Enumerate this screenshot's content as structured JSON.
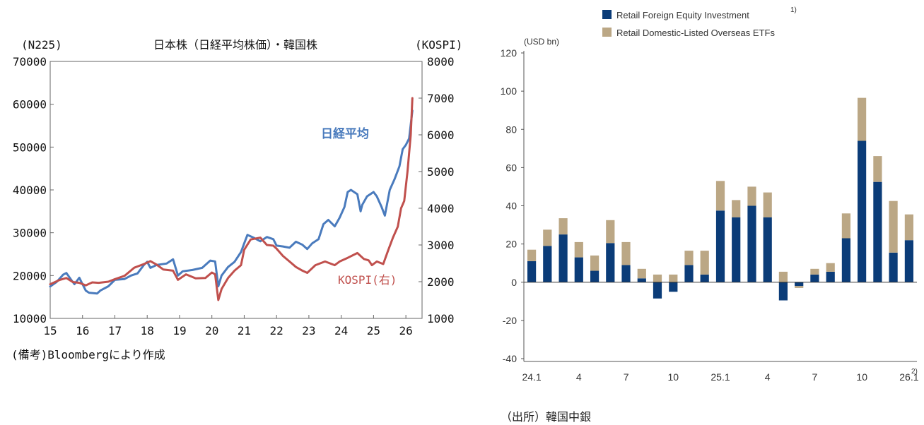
{
  "chart_data": [
    {
      "type": "line",
      "title": "日本株（日経平均株価）・韓国株",
      "left_axis_label": "(N225)",
      "right_axis_label": "(KOSPI)",
      "ylim_left": [
        10000,
        70000
      ],
      "ylim_right": [
        1000,
        8000
      ],
      "xlim": [
        2015,
        2026.5
      ],
      "yticks_left": [
        "10000",
        "20000",
        "30000",
        "40000",
        "50000",
        "60000",
        "70000"
      ],
      "yticks_right": [
        "1000",
        "2000",
        "3000",
        "4000",
        "5000",
        "6000",
        "7000",
        "8000"
      ],
      "xticks": [
        "15",
        "16",
        "17",
        "18",
        "19",
        "20",
        "21",
        "22",
        "23",
        "24",
        "25",
        "26"
      ],
      "note": "(備考)Bloombergにより作成",
      "grid": false,
      "series": [
        {
          "name": "日経平均",
          "axis": "left",
          "color": "#4a7bbd",
          "x": [
            2015.0,
            2015.2,
            2015.4,
            2015.5,
            2015.65,
            2015.75,
            2015.9,
            2016.0,
            2016.1,
            2016.2,
            2016.45,
            2016.55,
            2016.8,
            2017.0,
            2017.3,
            2017.5,
            2017.7,
            2017.9,
            2018.0,
            2018.1,
            2018.3,
            2018.6,
            2018.8,
            2018.95,
            2019.1,
            2019.4,
            2019.7,
            2019.95,
            2020.1,
            2020.2,
            2020.3,
            2020.5,
            2020.7,
            2020.9,
            2021.0,
            2021.1,
            2021.3,
            2021.5,
            2021.7,
            2021.9,
            2022.0,
            2022.2,
            2022.4,
            2022.6,
            2022.8,
            2022.95,
            2023.1,
            2023.3,
            2023.45,
            2023.6,
            2023.8,
            2023.95,
            2024.1,
            2024.2,
            2024.3,
            2024.5,
            2024.6,
            2024.65,
            2024.8,
            2025.0,
            2025.1,
            2025.25,
            2025.35,
            2025.5,
            2025.65,
            2025.8,
            2025.9,
            2026.0,
            2026.1,
            2026.2
          ],
          "y": [
            17450,
            18500,
            20200,
            20600,
            19000,
            18000,
            19500,
            18000,
            16500,
            16000,
            15800,
            16500,
            17500,
            19000,
            19200,
            20000,
            20500,
            22500,
            23200,
            21800,
            22500,
            22800,
            23800,
            20000,
            21000,
            21300,
            21800,
            23500,
            23300,
            17500,
            20000,
            22000,
            23200,
            25500,
            27500,
            29500,
            28800,
            28000,
            29000,
            28500,
            27000,
            26800,
            26500,
            27900,
            27200,
            26200,
            27500,
            28500,
            32000,
            33000,
            31500,
            33500,
            36000,
            39500,
            40000,
            39000,
            35000,
            36500,
            38500,
            39500,
            38500,
            36000,
            34000,
            40000,
            42500,
            45500,
            49500,
            50500,
            52000,
            58500
          ]
        },
        {
          "name": "KOSPI(右)",
          "axis": "right",
          "color": "#c0504d",
          "x": [
            2015.0,
            2015.3,
            2015.5,
            2015.7,
            2015.9,
            2016.1,
            2016.3,
            2016.5,
            2016.8,
            2017.0,
            2017.3,
            2017.6,
            2017.9,
            2018.1,
            2018.3,
            2018.5,
            2018.8,
            2018.95,
            2019.2,
            2019.5,
            2019.8,
            2020.0,
            2020.1,
            2020.2,
            2020.3,
            2020.5,
            2020.7,
            2020.9,
            2021.0,
            2021.2,
            2021.5,
            2021.7,
            2021.9,
            2022.0,
            2022.2,
            2022.4,
            2022.6,
            2022.8,
            2022.95,
            2023.2,
            2023.5,
            2023.8,
            2023.95,
            2024.2,
            2024.5,
            2024.7,
            2024.85,
            2024.95,
            2025.1,
            2025.3,
            2025.45,
            2025.6,
            2025.75,
            2025.85,
            2025.95,
            2026.05,
            2026.15,
            2026.2
          ],
          "y": [
            1930,
            2050,
            2100,
            1990,
            1970,
            1900,
            1980,
            1970,
            2000,
            2070,
            2160,
            2380,
            2480,
            2560,
            2460,
            2330,
            2300,
            2050,
            2200,
            2090,
            2100,
            2250,
            2200,
            1500,
            1800,
            2100,
            2300,
            2450,
            2870,
            3150,
            3200,
            3000,
            2980,
            2900,
            2700,
            2550,
            2400,
            2300,
            2240,
            2450,
            2550,
            2450,
            2550,
            2650,
            2780,
            2620,
            2580,
            2450,
            2550,
            2480,
            2850,
            3200,
            3500,
            4000,
            4200,
            5000,
            6000,
            7000
          ]
        }
      ],
      "annotations": [
        {
          "text": "日経平均",
          "color": "#4a7bbd"
        },
        {
          "text": "KOSPI(右)",
          "color": "#c0504d"
        }
      ]
    },
    {
      "type": "bar",
      "stacked": true,
      "ylabel": "(USD bn)",
      "ylim": [
        -40,
        120
      ],
      "yticks": [
        "120",
        "100",
        "80",
        "60",
        "40",
        "20",
        "0",
        "-20",
        "-40"
      ],
      "xtick_labels": [
        {
          "index": 0,
          "label": "24.1"
        },
        {
          "index": 3,
          "label": "4"
        },
        {
          "index": 6,
          "label": "7"
        },
        {
          "index": 9,
          "label": "10"
        },
        {
          "index": 12,
          "label": "25.1"
        },
        {
          "index": 15,
          "label": "4"
        },
        {
          "index": 18,
          "label": "7"
        },
        {
          "index": 21,
          "label": "10"
        },
        {
          "index": 24,
          "label": "26.1"
        }
      ],
      "xtick_suffix": "2)",
      "legend_placement": "top",
      "series": [
        {
          "name": "Retail Foreign Equity Investment",
          "name_superscript": "1)",
          "color": "#0b3c78",
          "values": [
            11,
            19,
            25,
            13,
            6,
            20.5,
            9,
            2,
            -8.5,
            -5,
            9,
            4,
            37.5,
            34,
            40,
            34,
            -9.5,
            -2,
            4,
            5.5,
            23,
            74,
            52.5,
            15.5,
            22
          ]
        },
        {
          "name": "Retail Domestic-Listed Overseas ETFs",
          "color": "#bba785",
          "values": [
            6,
            8.5,
            8.5,
            8,
            8,
            12,
            12,
            5,
            4,
            4,
            7.5,
            12.5,
            15.5,
            9,
            10,
            13,
            5.5,
            -1,
            3,
            4.5,
            13,
            22.5,
            13.5,
            27,
            13.5
          ]
        }
      ]
    }
  ],
  "source_note": "（出所）韓国中銀"
}
